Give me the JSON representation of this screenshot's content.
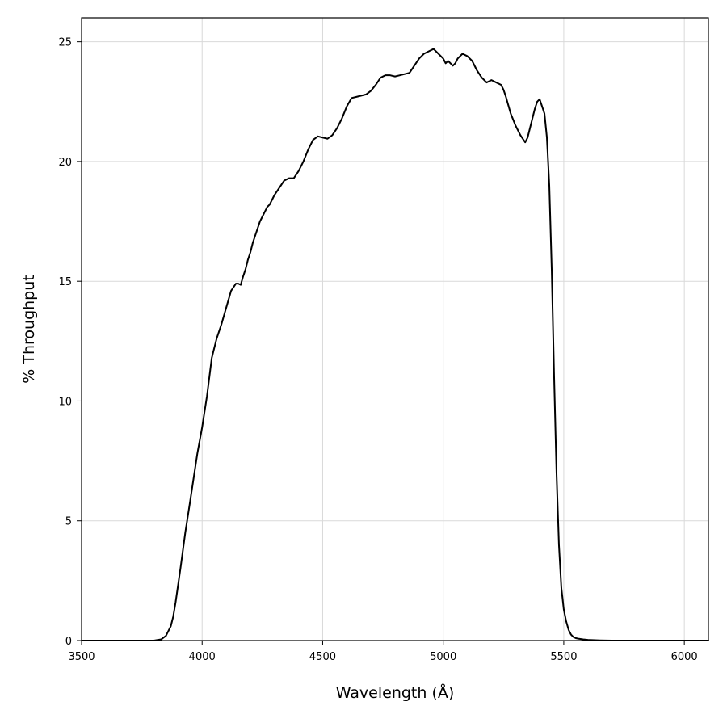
{
  "chart_data": {
    "type": "line",
    "xlabel": "Wavelength (Å)",
    "ylabel": "% Throughput",
    "xlim": [
      3500,
      6100
    ],
    "ylim": [
      0,
      26
    ],
    "xticks": [
      3500,
      4000,
      4500,
      5000,
      5500,
      6000
    ],
    "yticks": [
      0,
      5,
      10,
      15,
      20,
      25
    ],
    "xtick_labels": [
      "3500",
      "4000",
      "4500",
      "5000",
      "5500",
      "6000"
    ],
    "ytick_labels": [
      "0",
      "5",
      "10",
      "15",
      "20",
      "25"
    ],
    "grid": true,
    "legend": "none",
    "line_color": "#000000",
    "grid_color": "#d9d9d9",
    "series": [
      {
        "x": [
          3500,
          3800,
          3830,
          3850,
          3870,
          3880,
          3890,
          3900,
          3910,
          3930,
          3950,
          3980,
          4000,
          4020,
          4040,
          4060,
          4080,
          4100,
          4120,
          4140,
          4150,
          4160,
          4170,
          4180,
          4190,
          4200,
          4210,
          4220,
          4230,
          4240,
          4250,
          4260,
          4270,
          4280,
          4290,
          4300,
          4320,
          4340,
          4360,
          4380,
          4400,
          4420,
          4440,
          4460,
          4480,
          4500,
          4520,
          4540,
          4560,
          4580,
          4600,
          4620,
          4640,
          4660,
          4680,
          4700,
          4720,
          4740,
          4760,
          4780,
          4800,
          4820,
          4840,
          4860,
          4880,
          4900,
          4920,
          4940,
          4960,
          4980,
          5000,
          5010,
          5020,
          5040,
          5050,
          5060,
          5080,
          5100,
          5120,
          5140,
          5160,
          5180,
          5200,
          5220,
          5240,
          5250,
          5260,
          5280,
          5300,
          5320,
          5340,
          5350,
          5360,
          5370,
          5380,
          5390,
          5400,
          5420,
          5430,
          5440,
          5450,
          5460,
          5470,
          5480,
          5490,
          5500,
          5510,
          5520,
          5530,
          5540,
          5550,
          5560,
          5580,
          5600,
          5650,
          5700,
          5800,
          6100
        ],
        "y": [
          0,
          0,
          0.05,
          0.2,
          0.6,
          1.0,
          1.6,
          2.3,
          3.0,
          4.5,
          5.8,
          7.8,
          8.9,
          10.2,
          11.8,
          12.6,
          13.2,
          13.9,
          14.6,
          14.9,
          14.9,
          14.85,
          15.2,
          15.5,
          15.9,
          16.2,
          16.6,
          16.9,
          17.2,
          17.5,
          17.7,
          17.9,
          18.1,
          18.2,
          18.4,
          18.6,
          18.9,
          19.2,
          19.3,
          19.3,
          19.6,
          20.0,
          20.5,
          20.9,
          21.05,
          21.0,
          20.95,
          21.1,
          21.4,
          21.8,
          22.3,
          22.65,
          22.7,
          22.75,
          22.8,
          22.95,
          23.2,
          23.5,
          23.6,
          23.6,
          23.55,
          23.6,
          23.65,
          23.7,
          24.0,
          24.3,
          24.5,
          24.6,
          24.7,
          24.5,
          24.3,
          24.1,
          24.2,
          24.0,
          24.1,
          24.3,
          24.5,
          24.4,
          24.2,
          23.8,
          23.5,
          23.3,
          23.4,
          23.3,
          23.2,
          23.0,
          22.7,
          22.0,
          21.5,
          21.1,
          20.8,
          21.0,
          21.4,
          21.8,
          22.2,
          22.5,
          22.6,
          22.0,
          21.0,
          19.0,
          15.5,
          11.0,
          7.0,
          4.0,
          2.2,
          1.3,
          0.8,
          0.45,
          0.25,
          0.15,
          0.1,
          0.08,
          0.05,
          0.03,
          0.01,
          0,
          0,
          0
        ]
      }
    ]
  }
}
